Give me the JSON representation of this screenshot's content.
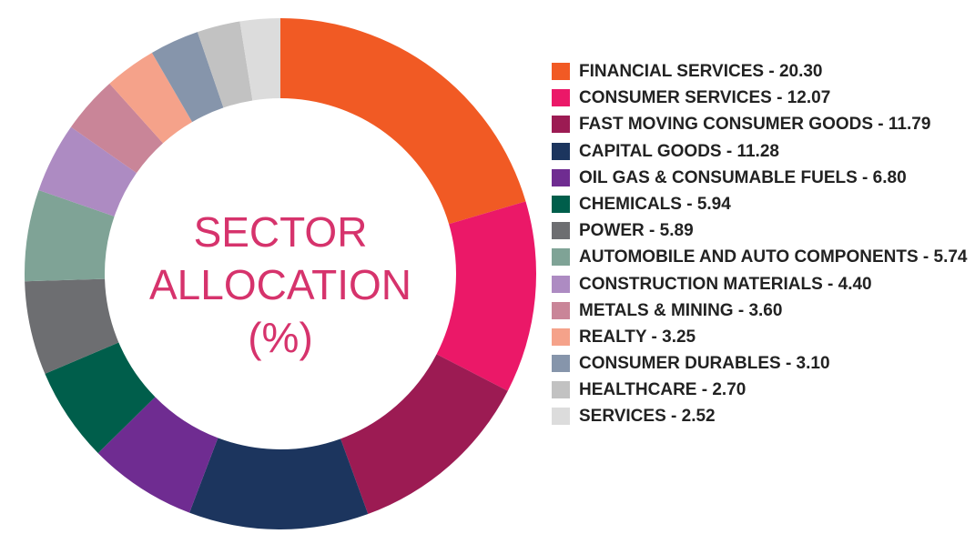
{
  "chart_data": {
    "type": "pie",
    "title_lines": [
      "SECTOR",
      "ALLOCATION",
      "(%)"
    ],
    "slices": [
      {
        "label": "FINANCIAL SERVICES - 20.30",
        "value": 20.3,
        "color": "#f15a24"
      },
      {
        "label": "CONSUMER SERVICES - 12.07",
        "value": 12.07,
        "color": "#eb1868"
      },
      {
        "label": "FAST MOVING CONSUMER GOODS - 11.79",
        "value": 11.79,
        "color": "#9c1b53"
      },
      {
        "label": "CAPITAL GOODS - 11.28",
        "value": 11.28,
        "color": "#1c355e"
      },
      {
        "label": "OIL GAS & CONSUMABLE FUELS - 6.80",
        "value": 6.8,
        "color": "#6f2c91"
      },
      {
        "label": "CHEMICALS - 5.94",
        "value": 5.94,
        "color": "#005e4b"
      },
      {
        "label": "POWER - 5.89",
        "value": 5.89,
        "color": "#6d6e71"
      },
      {
        "label": "AUTOMOBILE AND AUTO COMPONENTS - 5.74",
        "value": 5.74,
        "color": "#7fa396"
      },
      {
        "label": "CONSTRUCTION MATERIALS - 4.40",
        "value": 4.4,
        "color": "#ad8bc2"
      },
      {
        "label": "METALS & MINING - 3.60",
        "value": 3.6,
        "color": "#c98598"
      },
      {
        "label": "REALTY - 3.25",
        "value": 3.25,
        "color": "#f5a28a"
      },
      {
        "label": "CONSUMER DURABLES - 3.10",
        "value": 3.1,
        "color": "#8695ab"
      },
      {
        "label": "HEALTHCARE - 2.70",
        "value": 2.7,
        "color": "#c2c2c2"
      },
      {
        "label": "SERVICES - 2.52",
        "value": 2.52,
        "color": "#dcdcdc"
      }
    ],
    "legend_position": "right"
  }
}
